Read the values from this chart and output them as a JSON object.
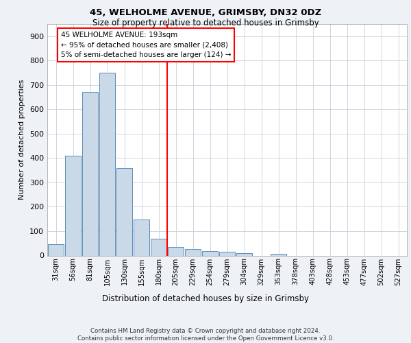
{
  "title1": "45, WELHOLME AVENUE, GRIMSBY, DN32 0DZ",
  "title2": "Size of property relative to detached houses in Grimsby",
  "xlabel": "Distribution of detached houses by size in Grimsby",
  "ylabel": "Number of detached properties",
  "footnote": "Contains HM Land Registry data © Crown copyright and database right 2024.\nContains public sector information licensed under the Open Government Licence v3.0.",
  "bar_labels": [
    "31sqm",
    "56sqm",
    "81sqm",
    "105sqm",
    "130sqm",
    "155sqm",
    "180sqm",
    "205sqm",
    "229sqm",
    "254sqm",
    "279sqm",
    "304sqm",
    "329sqm",
    "353sqm",
    "378sqm",
    "403sqm",
    "428sqm",
    "453sqm",
    "477sqm",
    "502sqm",
    "527sqm"
  ],
  "bar_values": [
    47,
    410,
    670,
    750,
    358,
    148,
    70,
    35,
    27,
    17,
    16,
    10,
    0,
    8,
    0,
    0,
    0,
    0,
    0,
    0,
    0
  ],
  "bar_color": "#c9d9e8",
  "bar_edge_color": "#5b8db8",
  "vline_x": 6.5,
  "vline_color": "red",
  "annotation_title": "45 WELHOLME AVENUE: 193sqm",
  "annotation_line1": "← 95% of detached houses are smaller (2,408)",
  "annotation_line2": "5% of semi-detached houses are larger (124) →",
  "annotation_box_color": "white",
  "annotation_box_edge_color": "red",
  "ylim": [
    0,
    950
  ],
  "yticks": [
    0,
    100,
    200,
    300,
    400,
    500,
    600,
    700,
    800,
    900
  ],
  "background_color": "#eef2f7",
  "plot_bg_color": "white",
  "grid_color": "#c8d0dc"
}
